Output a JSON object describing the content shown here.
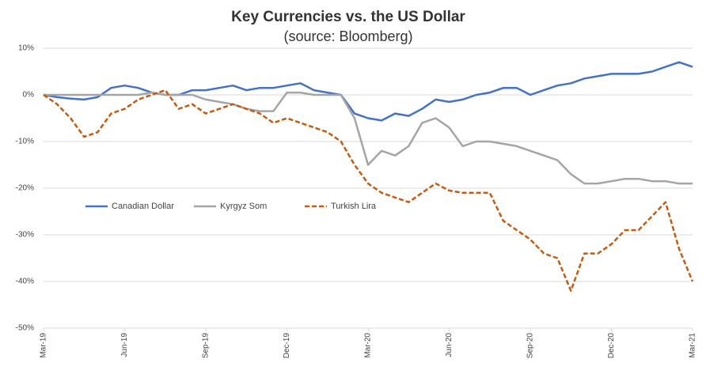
{
  "chart_data": {
    "type": "line",
    "title": "Key Currencies vs. the US Dollar",
    "subtitle": "(source: Bloomberg)",
    "x": [
      0,
      0.5,
      1,
      1.5,
      2,
      2.5,
      3,
      3.5,
      4,
      4.5,
      5,
      5.5,
      6,
      6.5,
      7,
      7.5,
      8,
      8.5,
      9,
      9.5,
      10,
      10.5,
      11,
      11.5,
      12,
      12.5,
      13,
      13.5,
      14,
      14.5,
      15,
      15.5,
      16,
      16.5,
      17,
      17.5,
      18,
      18.5,
      19,
      19.5,
      20,
      20.5,
      21,
      21.5,
      22,
      22.5,
      23,
      23.5,
      24
    ],
    "xlim": [
      0,
      24
    ],
    "xticks": [
      {
        "value": 0,
        "label": "Mar-19"
      },
      {
        "value": 3,
        "label": "Jun-19"
      },
      {
        "value": 6,
        "label": "Sep-19"
      },
      {
        "value": 9,
        "label": "Dec-19"
      },
      {
        "value": 12,
        "label": "Mar-20"
      },
      {
        "value": 15,
        "label": "Jun-20"
      },
      {
        "value": 18,
        "label": "Sep-20"
      },
      {
        "value": 21,
        "label": "Dec-20"
      },
      {
        "value": 24,
        "label": "Mar-21"
      }
    ],
    "ylim": [
      -50,
      10
    ],
    "yticks": [
      {
        "value": 10,
        "label": "10%"
      },
      {
        "value": 0,
        "label": "0%"
      },
      {
        "value": -10,
        "label": "-10%"
      },
      {
        "value": -20,
        "label": "-20%"
      },
      {
        "value": -30,
        "label": "-30%"
      },
      {
        "value": -40,
        "label": "-40%"
      },
      {
        "value": -50,
        "label": "-50%"
      }
    ],
    "grid": true,
    "series": [
      {
        "name": "Canadian Dollar",
        "color": "#4472c4",
        "style": "solid",
        "values": [
          0,
          -0.5,
          -0.8,
          -1,
          -0.5,
          1.5,
          2,
          1.5,
          0.5,
          0,
          0,
          1,
          1,
          1.5,
          2,
          1,
          1.5,
          1.5,
          2,
          2.5,
          1,
          0.5,
          0,
          -4,
          -5,
          -5.5,
          -4,
          -4.5,
          -3,
          -1,
          -1.5,
          -1,
          0,
          0.5,
          1.5,
          1.5,
          0,
          1,
          2,
          2.5,
          3.5,
          4,
          4.5,
          4.5,
          4.5,
          5,
          6,
          7,
          6
        ]
      },
      {
        "name": "Kyrgyz Som",
        "color": "#a5a5a5",
        "style": "solid",
        "values": [
          0,
          0,
          0,
          0,
          0,
          0,
          0,
          0,
          0.5,
          0,
          0,
          0,
          -1,
          -1.5,
          -2,
          -3,
          -3.5,
          -3.5,
          0.5,
          0.5,
          0,
          0,
          0,
          -5,
          -15,
          -12,
          -13,
          -11,
          -6,
          -5,
          -7,
          -11,
          -10,
          -10,
          -10.5,
          -11,
          -12,
          -13,
          -14,
          -17,
          -19,
          -19,
          -18.5,
          -18,
          -18,
          -18.5,
          -18.5,
          -19,
          -19
        ]
      },
      {
        "name": "Turkish Lira",
        "color": "#c55a11",
        "style": "dashed",
        "values": [
          0,
          -2,
          -5,
          -9,
          -8,
          -4,
          -3,
          -1,
          0,
          1,
          -3,
          -2,
          -4,
          -3,
          -2,
          -3,
          -4,
          -6,
          -5,
          -6,
          -7,
          -8,
          -10,
          -15,
          -19,
          -21,
          -22,
          -23,
          -21,
          -19,
          -20.5,
          -21,
          -21,
          -21,
          -27,
          -29,
          -31,
          -34,
          -35,
          -42,
          -34,
          -34,
          -32,
          -29,
          -29,
          -26,
          -23,
          -33,
          -40
        ]
      }
    ]
  }
}
